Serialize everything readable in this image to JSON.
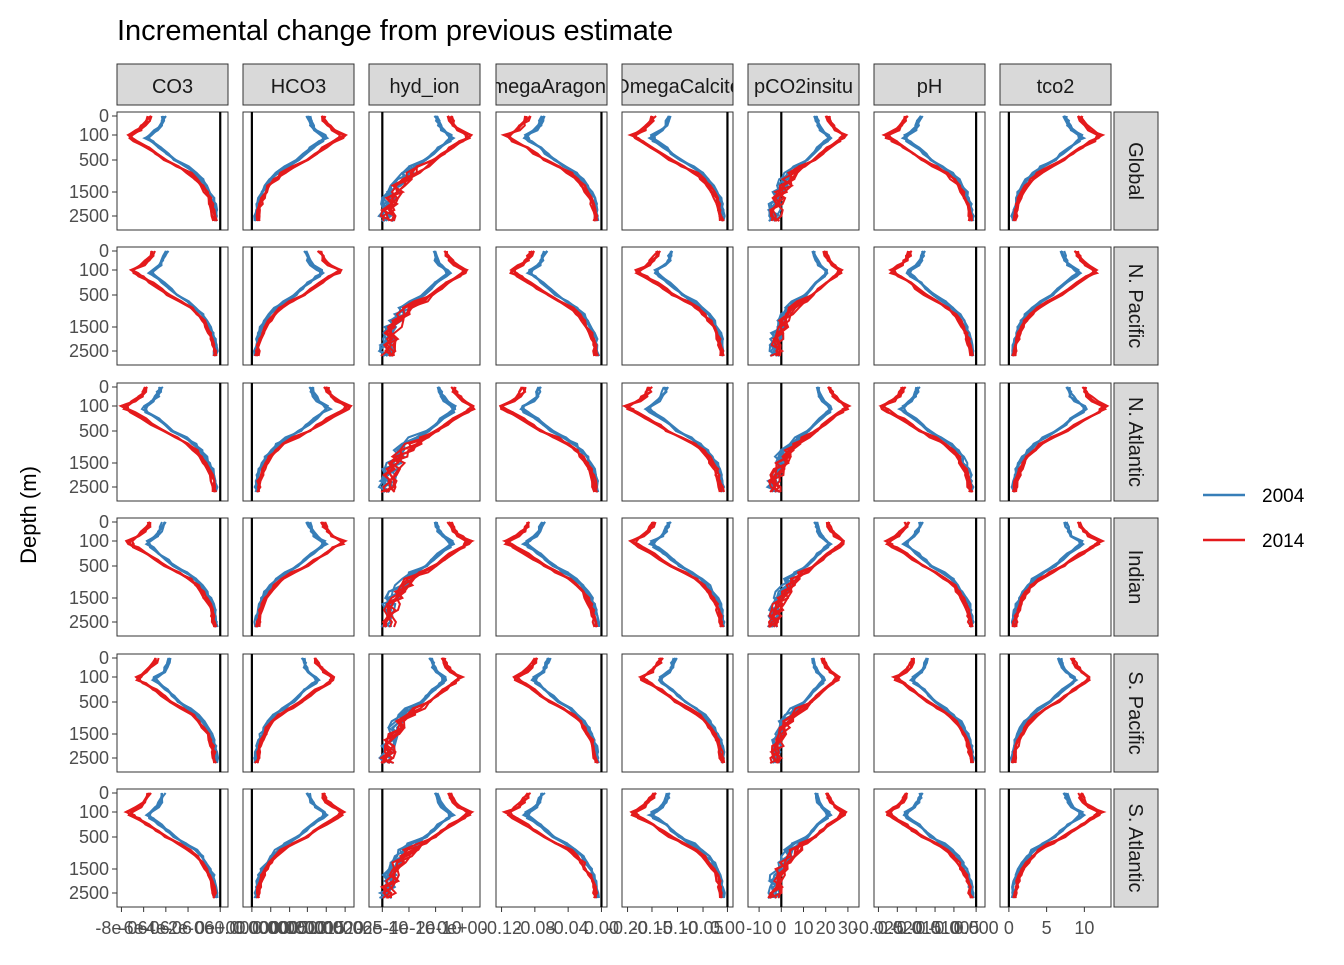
{
  "chart_data": {
    "type": "line",
    "title": "Incremental change from previous estimate",
    "ylabel": "Depth (m)",
    "xlabel": "",
    "y_reversed": true,
    "y_ticks": [
      0,
      100,
      500,
      1500,
      2500
    ],
    "y_tick_labels": [
      "0",
      "100",
      "500",
      "1500",
      "2500"
    ],
    "ylim": [
      0,
      2700
    ],
    "grid": false,
    "legend_position": "right",
    "legend": {
      "entries": [
        {
          "name": "2004",
          "color": "#377EB8"
        },
        {
          "name": "2014",
          "color": "#E41A1C"
        }
      ]
    },
    "columns": [
      "CO3",
      "HCO3",
      "hyd_ion",
      "OmegaAragonite",
      "OmegaCalcite",
      "pCO2insitu",
      "pH",
      "tco2"
    ],
    "rows": [
      "Global",
      "N. Pacific",
      "N. Atlantic",
      "Indian",
      "S. Pacific",
      "S. Atlantic"
    ],
    "x_tick_labels": {
      "CO3": [
        "-8e-06",
        "-6e-06",
        "-4e-06",
        "-2e-06",
        "0e+00"
      ],
      "HCO3": [
        "0.000000",
        "0.000005",
        "0.000010",
        "0.000015",
        "0.000020",
        "0.000025"
      ],
      "hyd_ion": [
        "-6e-10",
        "-4e-10",
        "-2e-10",
        "0e+00"
      ],
      "OmegaAragonite": [
        "-0.12",
        "-0.08",
        "-0.04",
        "0.00"
      ],
      "OmegaCalcite": [
        "-0.20",
        "-0.15",
        "-0.10",
        "-0.05",
        "0.00"
      ],
      "pCO2insitu": [
        "-10",
        "0",
        "10",
        "20",
        "30"
      ],
      "pH": [
        "-0.025",
        "-0.020",
        "-0.015",
        "-0.010",
        "-0.005",
        "0.000"
      ],
      "tco2": [
        "0",
        "5",
        "10"
      ]
    },
    "depth_levels": [
      0,
      25,
      50,
      75,
      100,
      150,
      200,
      300,
      400,
      500,
      700,
      900,
      1100,
      1300,
      1500,
      1750,
      2000,
      2250,
      2500,
      2750
    ],
    "profiles_2004_fraction_of_surface_signal": [
      0.62,
      0.64,
      0.66,
      0.7,
      0.78,
      0.8,
      0.76,
      0.66,
      0.58,
      0.5,
      0.38,
      0.28,
      0.21,
      0.16,
      0.12,
      0.09,
      0.07,
      0.06,
      0.05,
      0.05
    ],
    "profiles_2014_fraction_of_surface_signal": [
      0.78,
      0.8,
      0.84,
      0.9,
      1.0,
      0.98,
      0.92,
      0.8,
      0.7,
      0.6,
      0.46,
      0.34,
      0.26,
      0.2,
      0.16,
      0.12,
      0.1,
      0.08,
      0.07,
      0.06
    ]
  }
}
